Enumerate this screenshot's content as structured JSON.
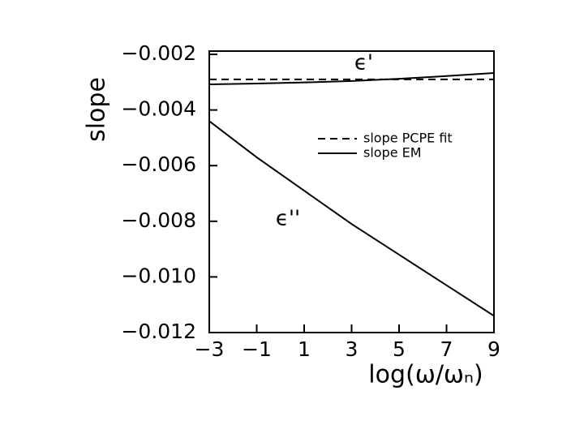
{
  "chart_data": {
    "type": "line",
    "ylabel": "slope",
    "xlabel": "log(ω/ωₙ)",
    "x": [
      -3,
      -1,
      1,
      3,
      5,
      7,
      9
    ],
    "series": [
      {
        "name": "slope PCPE fit",
        "color": "#000000",
        "dashed": true,
        "values": [
          -0.0029,
          -0.0029,
          -0.0029,
          -0.0029,
          -0.0029,
          -0.0029,
          -0.0029
        ]
      },
      {
        "name": "slope EM",
        "color": "#000000",
        "dashed": false,
        "annotation": "ϵ'",
        "values": [
          -0.00308,
          -0.00305,
          -0.00301,
          -0.00296,
          -0.00288,
          -0.00278,
          -0.00267
        ]
      },
      {
        "color": "#000000",
        "dashed": false,
        "annotation": "ϵ''",
        "values": [
          -0.0044,
          -0.0057,
          -0.0069,
          -0.0081,
          -0.0092,
          -0.0103,
          -0.0114
        ]
      }
    ],
    "xlim": [
      -3,
      9
    ],
    "xticks": [
      {
        "value": -3,
        "label": "−3"
      },
      {
        "value": -1,
        "label": "−1"
      },
      1,
      3,
      5,
      7,
      9
    ],
    "ylim": [
      -0.012,
      -0.002
    ],
    "yticks": [
      {
        "value": -0.012,
        "label": "−0.012"
      },
      {
        "value": -0.01,
        "label": "−0.010"
      },
      {
        "value": -0.008,
        "label": "−0.008"
      },
      {
        "value": -0.006,
        "label": "−0.006"
      },
      {
        "value": -0.004,
        "label": "−0.004"
      },
      {
        "value": -0.002,
        "label": "−0.002"
      }
    ],
    "grid": false
  }
}
